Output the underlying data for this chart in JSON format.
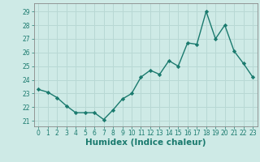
{
  "x": [
    0,
    1,
    2,
    3,
    4,
    5,
    6,
    7,
    8,
    9,
    10,
    11,
    12,
    13,
    14,
    15,
    16,
    17,
    18,
    19,
    20,
    21,
    22,
    23
  ],
  "y": [
    23.3,
    23.1,
    22.7,
    22.1,
    21.6,
    21.6,
    21.6,
    21.1,
    21.8,
    22.6,
    23.0,
    24.2,
    24.7,
    24.4,
    25.4,
    25.0,
    26.7,
    26.6,
    29.0,
    27.0,
    28.0,
    26.1,
    25.2,
    24.2
  ],
  "line_color": "#1a7a6e",
  "marker": "D",
  "marker_size": 2.2,
  "bg_color": "#ceeae6",
  "grid_color": "#b8d8d4",
  "xlabel": "Humidex (Indice chaleur)",
  "xlim": [
    -0.5,
    23.5
  ],
  "ylim": [
    20.6,
    29.6
  ],
  "yticks": [
    21,
    22,
    23,
    24,
    25,
    26,
    27,
    28,
    29
  ],
  "xticks": [
    0,
    1,
    2,
    3,
    4,
    5,
    6,
    7,
    8,
    9,
    10,
    11,
    12,
    13,
    14,
    15,
    16,
    17,
    18,
    19,
    20,
    21,
    22,
    23
  ],
  "tick_fontsize": 5.5,
  "xlabel_fontsize": 7.5,
  "line_width": 1.0
}
